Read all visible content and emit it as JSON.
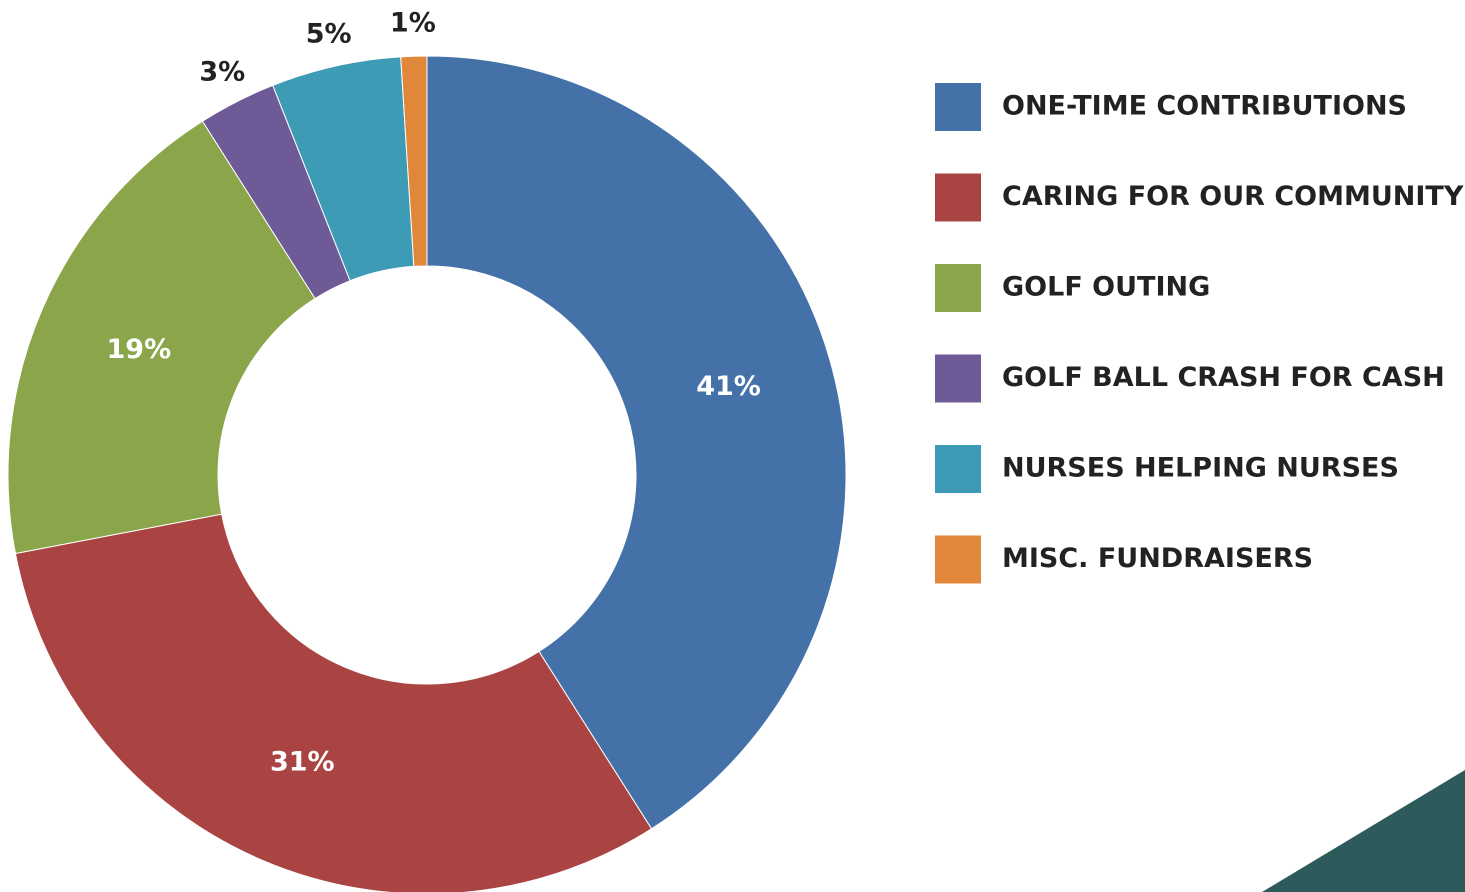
{
  "chart_data": {
    "type": "pie",
    "categories": [
      "ONE-TIME CONTRIBUTIONS",
      "CARING FOR OUR COMMUNITY",
      "GOLF OUTING",
      "GOLF BALL CRASH FOR CASH",
      "NURSES HELPING NURSES",
      "MISC. FUNDRAISERS"
    ],
    "values": [
      41,
      31,
      19,
      3,
      5,
      1
    ],
    "value_labels": [
      "41%",
      "31%",
      "19%",
      "3%",
      "5%",
      "1%"
    ],
    "colors": [
      "#4472a8",
      "#a94443",
      "#8ba54a",
      "#6e5a96",
      "#3e9bb5",
      "#e0873a"
    ],
    "legend": "right"
  }
}
